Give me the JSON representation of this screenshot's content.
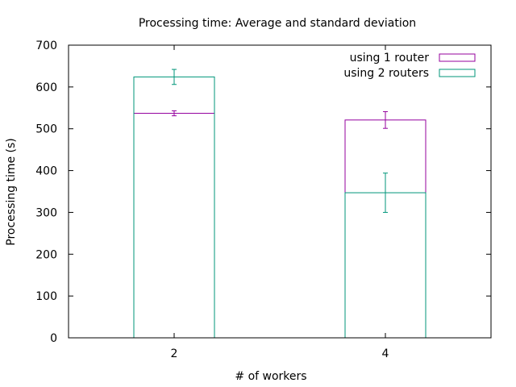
{
  "chart_data": {
    "type": "bar",
    "title": "Processing time: Average and standard deviation",
    "xlabel": "# of workers",
    "ylabel": "Processing time (s)",
    "categories": [
      "2",
      "4"
    ],
    "ylim": [
      0,
      700
    ],
    "yticks": [
      "0",
      "100",
      "200",
      "300",
      "400",
      "500",
      "600",
      "700"
    ],
    "grid": false,
    "legend": "top-right",
    "series": [
      {
        "name": "using 1 router",
        "color": "#94009e",
        "values": [
          537,
          521
        ],
        "std": [
          6,
          20
        ]
      },
      {
        "name": "using 2 routers",
        "color": "#00967a",
        "values": [
          624,
          347
        ],
        "std": [
          18,
          47
        ]
      }
    ]
  }
}
